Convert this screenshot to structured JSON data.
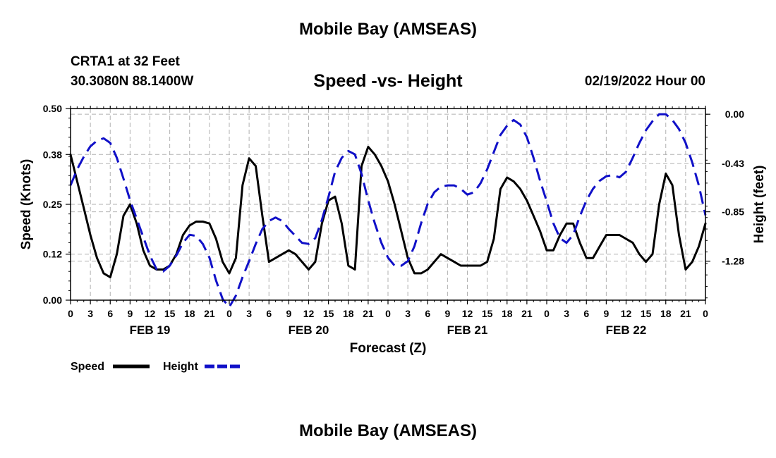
{
  "header": {
    "title": "Mobile Bay (AMSEAS)",
    "station": "CRTA1 at 32 Feet",
    "coordinates": "30.3080N  88.1400W",
    "date": "02/19/2022 Hour 00"
  },
  "footer": {
    "title": "Mobile Bay (AMSEAS)"
  },
  "chart_data": {
    "type": "line",
    "title": "Speed -vs- Height",
    "xlabel": "Forecast (Z)",
    "ylabel": "Speed (Knots)",
    "y2label": "Height (feet)",
    "x_range": [
      0,
      96
    ],
    "ylim": [
      0,
      0.5
    ],
    "y2lim": [
      -1.62,
      0.05
    ],
    "y_ticks": [
      0.0,
      0.12,
      0.25,
      0.38,
      0.5
    ],
    "y_tick_labels": [
      "0.00",
      "0.12",
      "0.25",
      "0.38",
      "0.50"
    ],
    "y2_ticks": [
      0.0,
      -0.43,
      -0.85,
      -1.28
    ],
    "y2_tick_labels": [
      "0.00",
      "-0.43",
      "-0.85",
      "-1.28"
    ],
    "x_ticks": [
      0,
      3,
      6,
      9,
      12,
      15,
      18,
      21,
      24,
      27,
      30,
      33,
      36,
      39,
      42,
      45,
      48,
      51,
      54,
      57,
      60,
      63,
      66,
      69,
      72,
      75,
      78,
      81,
      84,
      87,
      90,
      93,
      96
    ],
    "x_tick_labels": [
      "0",
      "3",
      "6",
      "9",
      "12",
      "15",
      "18",
      "21",
      "0",
      "3",
      "6",
      "9",
      "12",
      "15",
      "18",
      "21",
      "0",
      "3",
      "6",
      "9",
      "12",
      "15",
      "18",
      "21",
      "0",
      "3",
      "6",
      "9",
      "12",
      "15",
      "18",
      "21",
      "0"
    ],
    "day_labels": [
      {
        "x": 12,
        "label": "FEB 19"
      },
      {
        "x": 36,
        "label": "FEB 20"
      },
      {
        "x": 60,
        "label": "FEB 21"
      },
      {
        "x": 84,
        "label": "FEB 22"
      }
    ],
    "grid": true,
    "legend": "bottom-left",
    "series": [
      {
        "name": "Speed",
        "axis": "left",
        "color": "#000000",
        "style": "solid",
        "x": [
          0,
          1,
          2,
          3,
          4,
          5,
          6,
          7,
          8,
          9,
          10,
          11,
          12,
          13,
          14,
          15,
          16,
          17,
          18,
          19,
          20,
          21,
          22,
          23,
          24,
          25,
          26,
          27,
          28,
          29,
          30,
          31,
          32,
          33,
          34,
          35,
          36,
          37,
          38,
          39,
          40,
          41,
          42,
          43,
          44,
          45,
          46,
          47,
          48,
          49,
          50,
          51,
          52,
          53,
          54,
          55,
          56,
          57,
          58,
          59,
          60,
          61,
          62,
          63,
          64,
          65,
          66,
          67,
          68,
          69,
          70,
          71,
          72,
          73,
          74,
          75,
          76,
          77,
          78,
          79,
          80,
          81,
          82,
          83,
          84,
          85,
          86,
          87,
          88,
          89,
          90,
          91,
          92,
          93,
          94,
          95,
          96
        ],
        "values": [
          0.38,
          0.31,
          0.24,
          0.17,
          0.11,
          0.07,
          0.06,
          0.12,
          0.22,
          0.25,
          0.2,
          0.13,
          0.09,
          0.08,
          0.08,
          0.09,
          0.12,
          0.17,
          0.195,
          0.205,
          0.205,
          0.2,
          0.16,
          0.1,
          0.07,
          0.11,
          0.3,
          0.37,
          0.35,
          0.22,
          0.1,
          0.11,
          0.12,
          0.13,
          0.12,
          0.1,
          0.08,
          0.1,
          0.2,
          0.26,
          0.27,
          0.2,
          0.09,
          0.08,
          0.35,
          0.4,
          0.38,
          0.35,
          0.31,
          0.25,
          0.18,
          0.11,
          0.07,
          0.07,
          0.08,
          0.1,
          0.12,
          0.11,
          0.1,
          0.09,
          0.09,
          0.09,
          0.09,
          0.1,
          0.16,
          0.29,
          0.32,
          0.31,
          0.29,
          0.26,
          0.22,
          0.18,
          0.13,
          0.13,
          0.17,
          0.2,
          0.2,
          0.15,
          0.11,
          0.11,
          0.14,
          0.17,
          0.17,
          0.17,
          0.16,
          0.15,
          0.12,
          0.1,
          0.12,
          0.25,
          0.33,
          0.3,
          0.17,
          0.08,
          0.1,
          0.14,
          0.2
        ]
      },
      {
        "name": "Height",
        "axis": "right",
        "color": "#1010c8",
        "style": "dashed",
        "x": [
          0,
          1,
          2,
          3,
          4,
          5,
          6,
          7,
          8,
          9,
          10,
          11,
          12,
          13,
          14,
          15,
          16,
          17,
          18,
          19,
          20,
          21,
          22,
          23,
          24,
          25,
          26,
          27,
          28,
          29,
          30,
          31,
          32,
          33,
          34,
          35,
          36,
          37,
          38,
          39,
          40,
          41,
          42,
          43,
          44,
          45,
          46,
          47,
          48,
          49,
          50,
          51,
          52,
          53,
          54,
          55,
          56,
          57,
          58,
          59,
          60,
          61,
          62,
          63,
          64,
          65,
          66,
          67,
          68,
          69,
          70,
          71,
          72,
          73,
          74,
          75,
          76,
          77,
          78,
          79,
          80,
          81,
          82,
          83,
          84,
          85,
          86,
          87,
          88,
          89,
          90,
          91,
          92,
          93,
          94,
          95,
          96
        ],
        "values": [
          -0.62,
          -0.48,
          -0.37,
          -0.28,
          -0.23,
          -0.21,
          -0.25,
          -0.38,
          -0.56,
          -0.75,
          -0.91,
          -1.07,
          -1.23,
          -1.35,
          -1.37,
          -1.32,
          -1.23,
          -1.12,
          -1.05,
          -1.06,
          -1.13,
          -1.25,
          -1.45,
          -1.61,
          -1.68,
          -1.58,
          -1.42,
          -1.28,
          -1.13,
          -1.0,
          -0.93,
          -0.9,
          -0.93,
          -1.0,
          -1.06,
          -1.12,
          -1.13,
          -1.08,
          -0.92,
          -0.72,
          -0.5,
          -0.38,
          -0.32,
          -0.35,
          -0.52,
          -0.75,
          -0.95,
          -1.12,
          -1.25,
          -1.32,
          -1.32,
          -1.28,
          -1.15,
          -0.95,
          -0.78,
          -0.68,
          -0.63,
          -0.62,
          -0.62,
          -0.65,
          -0.7,
          -0.68,
          -0.6,
          -0.48,
          -0.33,
          -0.18,
          -0.1,
          -0.05,
          -0.09,
          -0.2,
          -0.38,
          -0.58,
          -0.76,
          -0.95,
          -1.08,
          -1.12,
          -1.05,
          -0.89,
          -0.75,
          -0.65,
          -0.58,
          -0.54,
          -0.53,
          -0.55,
          -0.5,
          -0.38,
          -0.25,
          -0.14,
          -0.06,
          0.0,
          0.0,
          -0.05,
          -0.13,
          -0.25,
          -0.42,
          -0.62,
          -0.88
        ]
      }
    ]
  }
}
